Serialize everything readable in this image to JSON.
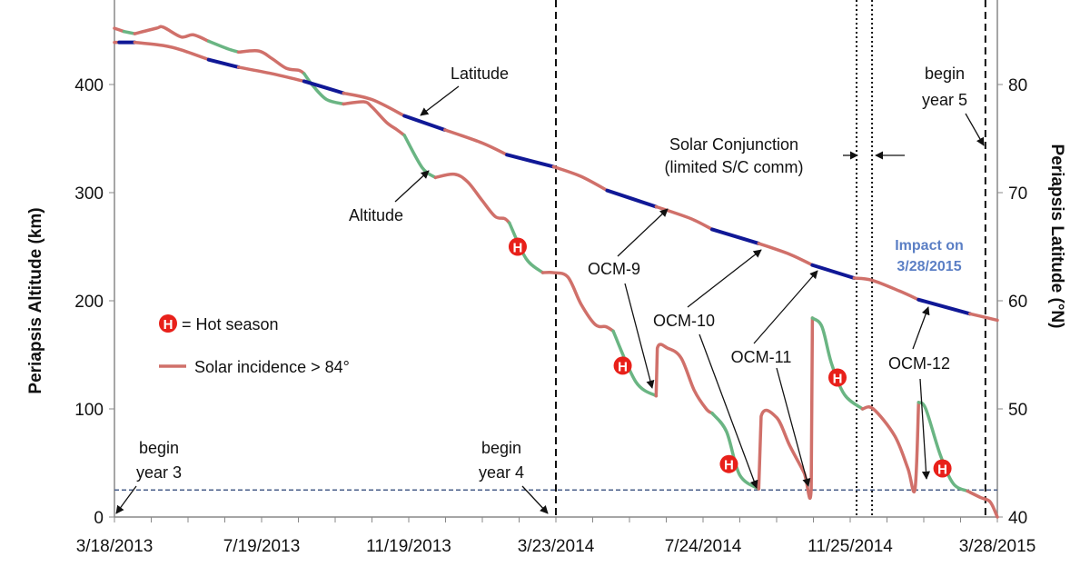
{
  "chart_data": {
    "type": "line",
    "x_axis": {
      "type": "date",
      "tick_labels": [
        "3/18/2013",
        "7/19/2013",
        "11/19/2013",
        "3/23/2014",
        "7/24/2014",
        "11/25/2014",
        "3/28/2015"
      ],
      "range": [
        "3/18/2013",
        "3/28/2015"
      ]
    },
    "y_axis_left": {
      "label": "Periapsis Altitude (km)",
      "ticks": [
        0,
        100,
        200,
        300,
        400
      ],
      "range": [
        0,
        478
      ]
    },
    "y_axis_right": {
      "label": "Periapsis Latitude (°N)",
      "ticks": [
        40,
        50,
        60,
        70,
        80
      ],
      "range": [
        40,
        87.8
      ]
    },
    "colors": {
      "solar_incidence": "#d0706a",
      "altitude_normal": "#6ab583",
      "latitude_normal": "#101896",
      "reference_lines": "#111111",
      "impact_line": "#4a5f8a",
      "hot_marker": "#e8201a",
      "impact_text": "#5b7fc5"
    },
    "note_x_units": "days after 3/18/2013",
    "series": [
      {
        "name": "Altitude",
        "axis": "left",
        "segments": [
          {
            "c": "r",
            "pts": [
              [
                0,
                452
              ],
              [
                8,
                449
              ]
            ]
          },
          {
            "c": "g",
            "pts": [
              [
                8,
                449
              ],
              [
                17,
                447
              ]
            ]
          },
          {
            "c": "r",
            "pts": [
              [
                17,
                447
              ],
              [
                35,
                452
              ],
              [
                41,
                453
              ],
              [
                56,
                444
              ],
              [
                66,
                446
              ],
              [
                79,
                440
              ]
            ]
          },
          {
            "c": "g",
            "pts": [
              [
                79,
                440
              ],
              [
                95,
                433
              ],
              [
                104,
                430
              ]
            ]
          },
          {
            "c": "r",
            "pts": [
              [
                104,
                430
              ],
              [
                121,
                431
              ],
              [
                132,
                424
              ],
              [
                144,
                415
              ],
              [
                155,
                413
              ],
              [
                159,
                410
              ]
            ]
          },
          {
            "c": "g",
            "pts": [
              [
                159,
                410
              ],
              [
                167,
                398
              ],
              [
                178,
                386
              ],
              [
                192,
                382
              ]
            ]
          },
          {
            "c": "r",
            "pts": [
              [
                192,
                382
              ],
              [
                209,
                384
              ],
              [
                216,
                379
              ],
              [
                228,
                365
              ],
              [
                237,
                358
              ],
              [
                243,
                353
              ]
            ]
          },
          {
            "c": "g",
            "pts": [
              [
                243,
                353
              ],
              [
                258,
                323
              ],
              [
                269,
                314
              ]
            ]
          },
          {
            "c": "r",
            "pts": [
              [
                269,
                314
              ],
              [
                285,
                317
              ],
              [
                296,
                310
              ],
              [
                308,
                293
              ],
              [
                319,
                278
              ],
              [
                327,
                276
              ],
              [
                331,
                272
              ]
            ]
          },
          {
            "c": "g",
            "pts": [
              [
                331,
                272
              ],
              [
                345,
                239
              ],
              [
                359,
                226
              ]
            ]
          },
          {
            "c": "r",
            "pts": [
              [
                359,
                226
              ],
              [
                368,
                226
              ],
              [
                380,
                222
              ],
              [
                391,
                197
              ],
              [
                403,
                178
              ],
              [
                412,
                176
              ],
              [
                418,
                172
              ]
            ]
          },
          {
            "c": "g",
            "pts": [
              [
                418,
                172
              ],
              [
                437,
                125
              ],
              [
                454,
                112
              ]
            ]
          },
          {
            "c": "r",
            "pts": [
              [
                454,
                112
              ],
              [
                455,
                156
              ],
              [
                464,
                156
              ],
              [
                475,
                147
              ],
              [
                486,
                117
              ],
              [
                496,
                100
              ],
              [
                501,
                96
              ]
            ]
          },
          {
            "c": "g",
            "pts": [
              [
                501,
                96
              ],
              [
                513,
                79
              ],
              [
                524,
                39
              ],
              [
                540,
                26
              ]
            ]
          },
          {
            "c": "r",
            "pts": [
              [
                540,
                26
              ],
              [
                542,
                93
              ],
              [
                555,
                92
              ],
              [
                566,
                66
              ],
              [
                578,
                41
              ],
              [
                584,
                26
              ],
              [
                585,
                184
              ]
            ]
          },
          {
            "c": "g",
            "pts": [
              [
                585,
                184
              ],
              [
                593,
                176
              ],
              [
                601,
                142
              ],
              [
                612,
                113
              ],
              [
                627,
                100
              ]
            ]
          },
          {
            "c": "r",
            "pts": [
              [
                627,
                100
              ],
              [
                636,
                100
              ],
              [
                654,
                75
              ],
              [
                665,
                45
              ],
              [
                671,
                26
              ],
              [
                674,
                106
              ]
            ]
          },
          {
            "c": "g",
            "pts": [
              [
                674,
                106
              ],
              [
                680,
                100
              ],
              [
                692,
                58
              ],
              [
                703,
                31
              ],
              [
                715,
                24
              ]
            ]
          },
          {
            "c": "r",
            "pts": [
              [
                715,
                24
              ],
              [
                726,
                18
              ],
              [
                734,
                14
              ],
              [
                740,
                0
              ]
            ]
          }
        ]
      },
      {
        "name": "Latitude",
        "axis": "right",
        "segments": [
          {
            "c": "r",
            "pts": [
              [
                0,
                83.9
              ],
              [
                4,
                83.9
              ]
            ]
          },
          {
            "c": "b",
            "pts": [
              [
                4,
                83.9
              ],
              [
                17,
                83.9
              ]
            ]
          },
          {
            "c": "r",
            "pts": [
              [
                17,
                83.9
              ],
              [
                41,
                83.6
              ],
              [
                56,
                83.2
              ],
              [
                79,
                82.3
              ]
            ]
          },
          {
            "c": "b",
            "pts": [
              [
                79,
                82.3
              ],
              [
                104,
                81.6
              ]
            ]
          },
          {
            "c": "r",
            "pts": [
              [
                104,
                81.6
              ],
              [
                132,
                81.0
              ],
              [
                159,
                80.3
              ]
            ]
          },
          {
            "c": "b",
            "pts": [
              [
                159,
                80.3
              ],
              [
                192,
                79.2
              ]
            ]
          },
          {
            "c": "r",
            "pts": [
              [
                192,
                79.2
              ],
              [
                216,
                78.6
              ],
              [
                243,
                77.1
              ]
            ]
          },
          {
            "c": "b",
            "pts": [
              [
                243,
                77.1
              ],
              [
                277,
                75.8
              ]
            ]
          },
          {
            "c": "r",
            "pts": [
              [
                277,
                75.8
              ],
              [
                308,
                74.6
              ],
              [
                329,
                73.5
              ]
            ]
          },
          {
            "c": "b",
            "pts": [
              [
                329,
                73.5
              ],
              [
                368,
                72.4
              ]
            ]
          },
          {
            "c": "r",
            "pts": [
              [
                368,
                72.4
              ],
              [
                391,
                71.5
              ],
              [
                413,
                70.2
              ]
            ]
          },
          {
            "c": "b",
            "pts": [
              [
                413,
                70.2
              ],
              [
                454,
                68.7
              ]
            ]
          },
          {
            "c": "r",
            "pts": [
              [
                454,
                68.7
              ],
              [
                483,
                67.6
              ],
              [
                501,
                66.6
              ]
            ]
          },
          {
            "c": "b",
            "pts": [
              [
                501,
                66.6
              ],
              [
                540,
                65.3
              ]
            ]
          },
          {
            "c": "r",
            "pts": [
              [
                540,
                65.3
              ],
              [
                566,
                64.3
              ],
              [
                585,
                63.3
              ]
            ]
          },
          {
            "c": "b",
            "pts": [
              [
                585,
                63.3
              ],
              [
                620,
                62.1
              ]
            ]
          },
          {
            "c": "r",
            "pts": [
              [
                620,
                62.1
              ],
              [
                635,
                61.9
              ],
              [
                658,
                60.9
              ],
              [
                674,
                60.1
              ]
            ]
          },
          {
            "c": "b",
            "pts": [
              [
                674,
                60.1
              ],
              [
                717,
                58.8
              ]
            ]
          },
          {
            "c": "r",
            "pts": [
              [
                717,
                58.8
              ],
              [
                740,
                58.2
              ]
            ]
          }
        ]
      }
    ],
    "hot_season_markers": [
      [
        338,
        250
      ],
      [
        426,
        140
      ],
      [
        515,
        49
      ],
      [
        606,
        129
      ],
      [
        694,
        45
      ]
    ],
    "vertical_dashed_lines_days": [
      370,
      730
    ],
    "solar_conjunction_dotted_days": [
      622,
      635
    ],
    "impact_altitude_km": 25,
    "annotations": {
      "latitude": "Latitude",
      "altitude": "Altitude",
      "ocm9": "OCM-9",
      "ocm10": "OCM-10",
      "ocm11": "OCM-11",
      "ocm12": "OCM-12",
      "conj1": "Solar Conjunction",
      "conj2": "(limited S/C comm)",
      "y5a": "begin",
      "y5b": "year 5",
      "y4a": "begin",
      "y4b": "year 4",
      "y3a": "begin",
      "y3b": "year 3",
      "impact1": "Impact on",
      "impact2": "3/28/2015"
    },
    "legend": {
      "hot_symbol": "H",
      "hot_label": "= Hot season",
      "line_label": "Solar incidence > 84°"
    }
  }
}
